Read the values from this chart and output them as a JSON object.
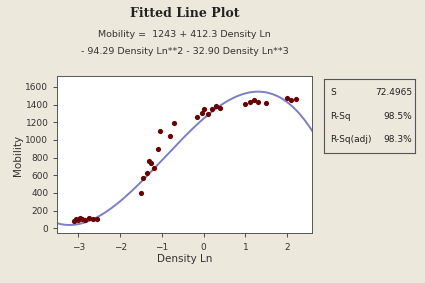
{
  "title": "Fitted Line Plot",
  "subtitle_line1": "Mobility =  1243 + 412.3 Density Ln",
  "subtitle_line2": "- 94.29 Density Ln**2 - 32.90 Density Ln**3",
  "xlabel": "Density Ln",
  "ylabel": "Mobility",
  "bg_color": "#ede8dc",
  "plot_bg_color": "#ffffff",
  "line_color": "#7b7fc4",
  "dot_color": "#6b0000",
  "xlim": [
    -3.5,
    2.6
  ],
  "ylim": [
    -60,
    1720
  ],
  "xticks": [
    -3,
    -2,
    -1,
    0,
    1,
    2
  ],
  "yticks": [
    0,
    200,
    400,
    600,
    800,
    1000,
    1200,
    1400,
    1600
  ],
  "scatter_x": [
    -3.1,
    -3.05,
    -3.0,
    -2.95,
    -2.9,
    -2.85,
    -2.75,
    -2.65,
    -2.55,
    -1.5,
    -1.45,
    -1.35,
    -1.3,
    -1.25,
    -1.2,
    -1.1,
    -1.05,
    -0.8,
    -0.7,
    -0.15,
    -0.05,
    0.0,
    0.1,
    0.2,
    0.3,
    0.4,
    1.0,
    1.1,
    1.2,
    1.3,
    1.5,
    2.0,
    2.1,
    2.2
  ],
  "scatter_y": [
    85,
    100,
    90,
    110,
    100,
    95,
    115,
    100,
    105,
    400,
    570,
    630,
    760,
    740,
    680,
    900,
    1100,
    1050,
    1190,
    1260,
    1300,
    1350,
    1290,
    1350,
    1380,
    1360,
    1410,
    1430,
    1450,
    1430,
    1420,
    1480,
    1450,
    1460
  ],
  "stats_labels": [
    "S",
    "R-Sq",
    "R-Sq(adj)"
  ],
  "stats_values": [
    "72.4965",
    "98.5%",
    "98.3%"
  ],
  "poly_coeffs": [
    1243,
    412.3,
    -94.29,
    -32.9
  ]
}
